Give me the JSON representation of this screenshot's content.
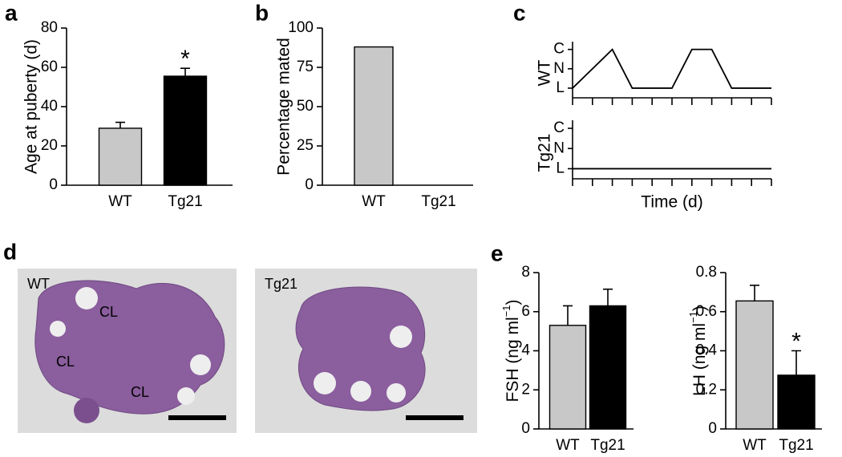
{
  "chart_data": [
    {
      "type": "bar",
      "panel": "a",
      "ylabel": "Age at puberty (d)",
      "categories": [
        "WT",
        "Tg21"
      ],
      "values": [
        29,
        55.5
      ],
      "errors": [
        3,
        4
      ],
      "colors": [
        "#c8c8c8",
        "#000000"
      ],
      "ylim": [
        0,
        80
      ],
      "yticks": [
        0,
        20,
        40,
        60,
        80
      ],
      "significance": [
        null,
        "*"
      ]
    },
    {
      "type": "bar",
      "panel": "b",
      "ylabel": "Percentage mated",
      "categories": [
        "WT",
        "Tg21"
      ],
      "values": [
        88,
        0
      ],
      "colors": [
        "#c8c8c8",
        "#000000"
      ],
      "ylim": [
        0,
        100
      ],
      "yticks": [
        0,
        25,
        50,
        75,
        100
      ]
    },
    {
      "type": "line",
      "panel": "c",
      "ylabel": "WT",
      "x": [
        0,
        2,
        3,
        5,
        6,
        7,
        8,
        10
      ],
      "values": [
        0,
        2,
        0,
        0,
        2,
        2,
        0,
        0
      ],
      "color": "#000000",
      "xlim": [
        0,
        10
      ],
      "xticks": [
        0,
        1,
        2,
        3,
        4,
        5,
        6,
        7,
        8,
        9,
        10
      ],
      "ylim": [
        -0.5,
        2.4
      ],
      "yticks": [
        {
          "value": 0,
          "label": "L"
        },
        {
          "value": 1,
          "label": "N"
        },
        {
          "value": 2,
          "label": "C"
        }
      ]
    },
    {
      "type": "line",
      "ylabel": "Tg21",
      "xlabel": "Time (d)",
      "x": [
        0,
        10
      ],
      "values": [
        0,
        0
      ],
      "color": "#000000",
      "xlim": [
        0,
        10
      ],
      "xticks": [
        0,
        1,
        2,
        3,
        4,
        5,
        6,
        7,
        8,
        9,
        10
      ],
      "ylim": [
        -0.5,
        2.4
      ],
      "yticks": [
        {
          "value": 0,
          "label": "L"
        },
        {
          "value": 1,
          "label": "N"
        },
        {
          "value": 2,
          "label": "C"
        }
      ]
    },
    {
      "type": "bar",
      "panel": "e",
      "ylabel": [
        "FSH (ng ml",
        "−1",
        ")"
      ],
      "categories": [
        "WT",
        "Tg21"
      ],
      "values": [
        5.3,
        6.3
      ],
      "errors": [
        1.0,
        0.85
      ],
      "colors": [
        "#c8c8c8",
        "#000000"
      ],
      "ylim": [
        0,
        8
      ],
      "yticks": [
        0,
        2,
        4,
        6,
        8
      ]
    },
    {
      "type": "bar",
      "ylabel": [
        "LH (ng ml",
        "−1",
        ")"
      ],
      "categories": [
        "WT",
        "Tg21"
      ],
      "values": [
        0.655,
        0.275
      ],
      "errors": [
        0.08,
        0.125
      ],
      "colors": [
        "#c8c8c8",
        "#000000"
      ],
      "ylim": [
        0,
        0.8
      ],
      "yticks": [
        0,
        0.2,
        0.4,
        0.6,
        0.8
      ],
      "significance": [
        null,
        "*"
      ]
    }
  ],
  "histology": {
    "panel": "d",
    "images": [
      {
        "label": "WT",
        "regions": [
          "CL",
          "CL",
          "CL"
        ]
      },
      {
        "label": "Tg21"
      }
    ]
  }
}
